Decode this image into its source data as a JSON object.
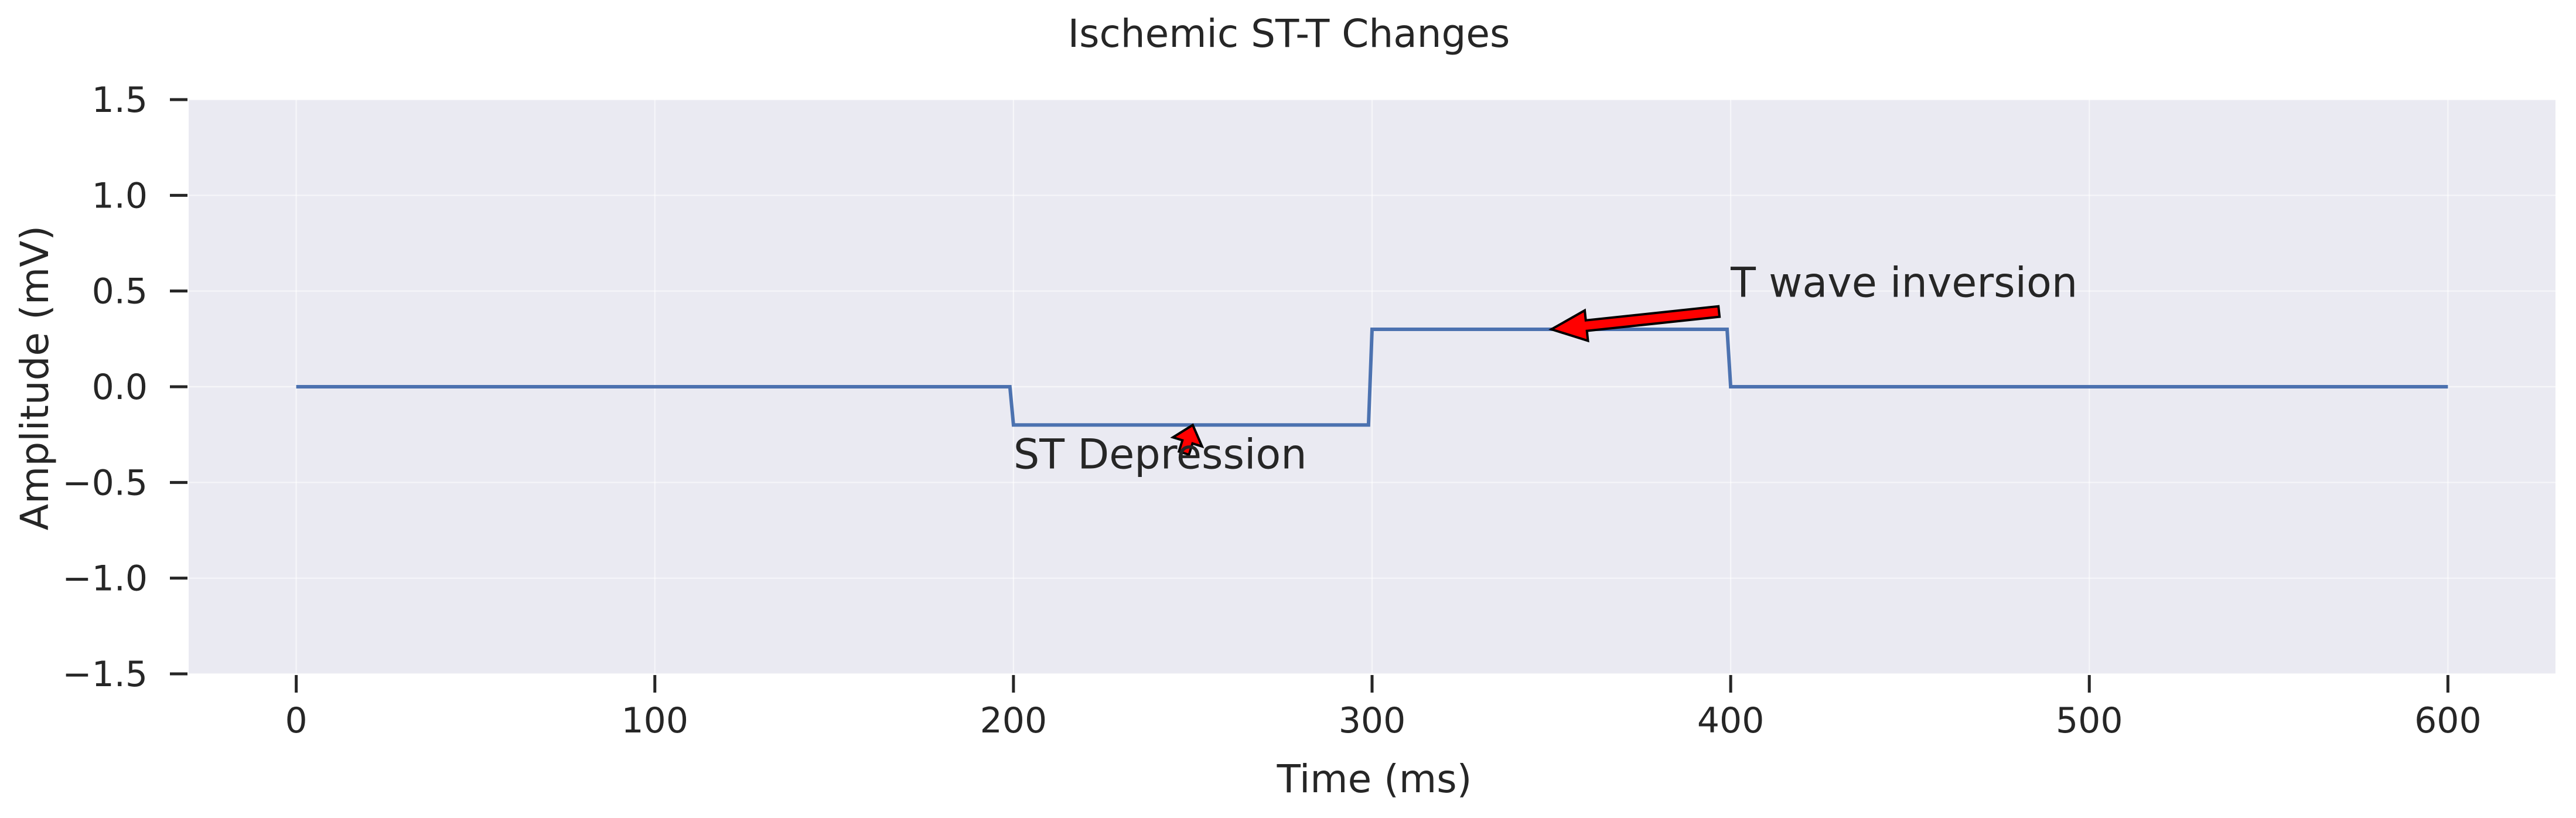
{
  "chart_data": {
    "type": "line",
    "title": "Ischemic ST-T Changes",
    "xlabel": "Time (ms)",
    "ylabel": "Amplitude (mV)",
    "xlim": [
      -30,
      630
    ],
    "ylim": [
      -1.5,
      1.5
    ],
    "xticks": [
      0,
      100,
      200,
      300,
      400,
      500,
      600
    ],
    "xtick_labels": [
      "0",
      "100",
      "200",
      "300",
      "400",
      "500",
      "600"
    ],
    "yticks": [
      -1.5,
      -1.0,
      -0.5,
      0.0,
      0.5,
      1.0,
      1.5
    ],
    "ytick_labels": [
      "−1.5",
      "−1.0",
      "−0.5",
      "0.0",
      "0.5",
      "1.0",
      "1.5"
    ],
    "grid": true,
    "series": [
      {
        "color": "#4c72b0",
        "x": [
          0,
          199,
          200,
          299,
          300,
          399,
          400,
          600
        ],
        "y": [
          0.0,
          0.0,
          -0.2,
          -0.2,
          0.3,
          0.3,
          0.0,
          0.0
        ]
      }
    ],
    "annotations": [
      {
        "text": "ST Depression",
        "xy": [
          250,
          -0.2
        ],
        "xytext": [
          200,
          -0.35
        ],
        "arrow_color": "#ff0000"
      },
      {
        "text": "T wave inversion",
        "xy": [
          350,
          0.3
        ],
        "xytext": [
          400,
          0.5
        ],
        "arrow_color": "#ff0000"
      }
    ],
    "background": "#eaeaf2"
  }
}
